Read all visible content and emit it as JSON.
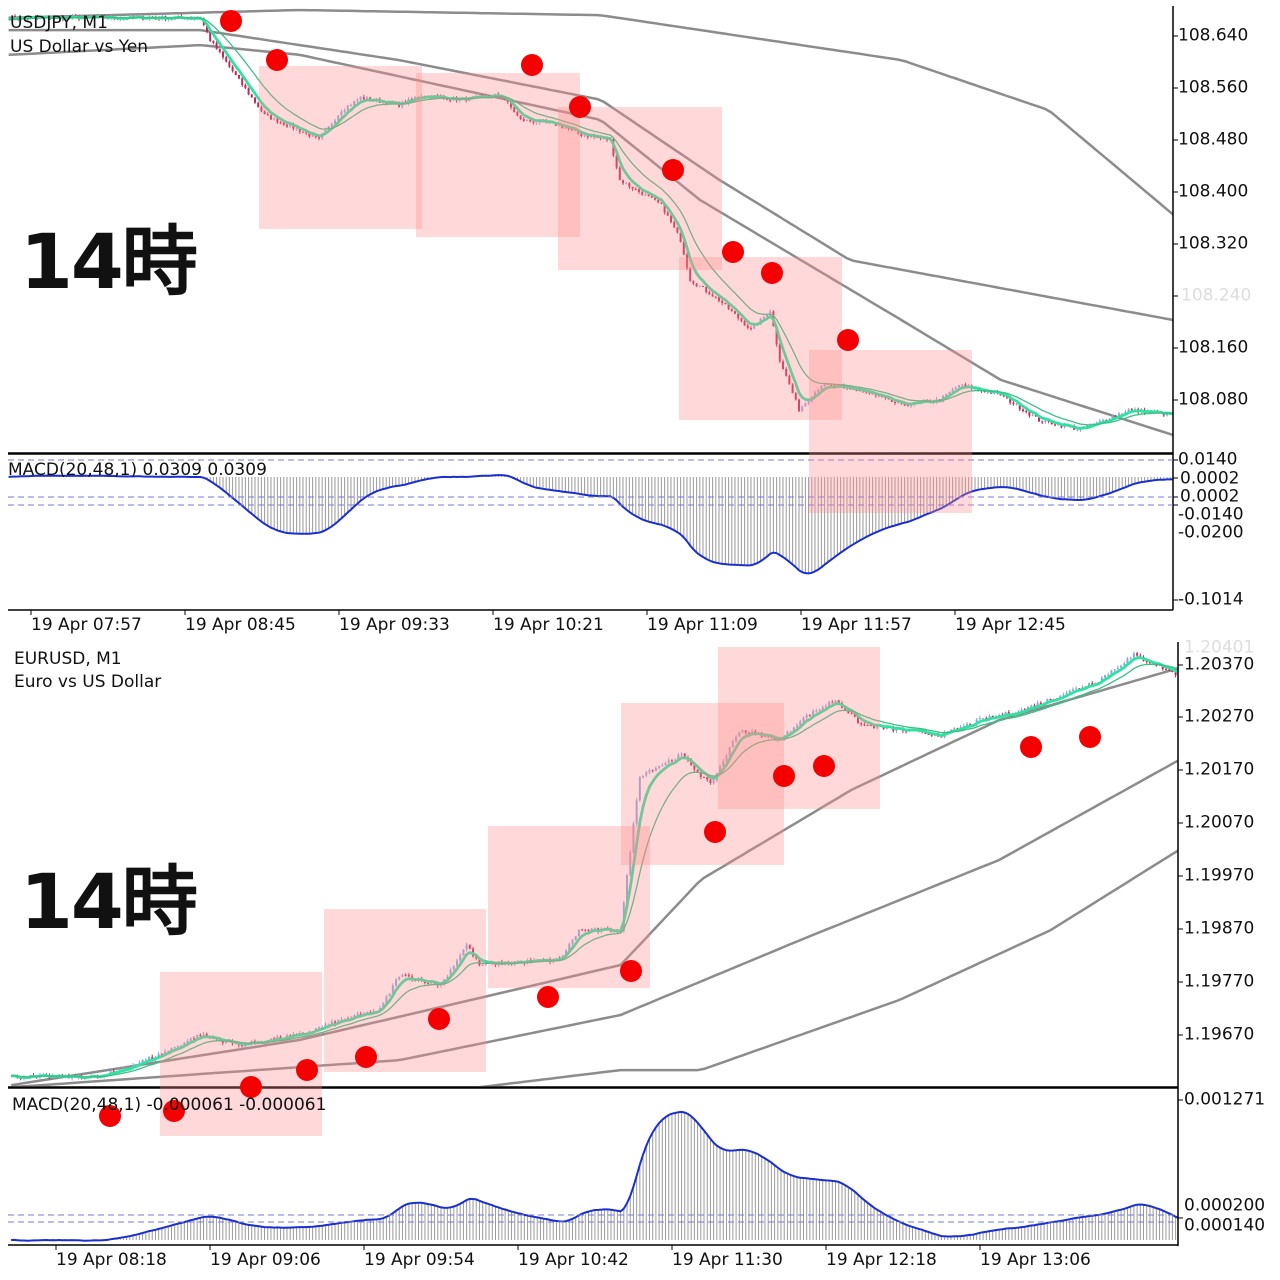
{
  "chart_data": [
    {
      "type": "candlestick",
      "symbol_label": "USDJPY, M1",
      "description": "US Dollar vs Yen",
      "annotation_text": "14時",
      "x_unit": "minutes after 19 Apr 07:57",
      "noise": 0.006,
      "close_keypoints": {
        "t": [
          -7,
          53,
          56,
          65,
          73,
          84,
          90,
          97,
          103,
          115,
          122,
          134,
          147,
          153,
          165,
          172,
          181,
          184,
          197,
          203,
          206,
          215,
          225,
          231,
          234,
          240,
          247,
          259,
          272,
          284,
          290,
          303,
          315,
          328,
          343,
          357
        ],
        "p": [
          108.668,
          108.668,
          108.634,
          108.572,
          108.518,
          108.495,
          108.48,
          108.526,
          108.545,
          108.534,
          108.549,
          108.542,
          108.549,
          108.511,
          108.503,
          108.488,
          108.48,
          108.418,
          108.38,
          108.326,
          108.265,
          108.234,
          108.188,
          108.218,
          108.142,
          108.065,
          108.103,
          108.095,
          108.072,
          108.08,
          108.103,
          108.088,
          108.049,
          108.034,
          108.065,
          108.057
        ]
      },
      "bands": [
        {
          "t": [
            -7,
            84,
            178,
            272,
            318,
            357
          ],
          "p": [
            108.668,
            108.68,
            108.672,
            108.603,
            108.526,
            108.365
          ]
        },
        {
          "t": [
            -7,
            53,
            115,
            178,
            215,
            256,
            357
          ],
          "p": [
            108.649,
            108.649,
            108.603,
            108.542,
            108.419,
            108.295,
            108.203
          ]
        },
        {
          "t": [
            -7,
            53,
            84,
            178,
            209,
            272,
            303,
            357
          ],
          "p": [
            108.611,
            108.626,
            108.611,
            108.511,
            108.388,
            108.203,
            108.111,
            108.026
          ]
        }
      ],
      "price_ticks": [
        "108.640",
        "108.560",
        "108.480",
        "108.400",
        "108.320",
        "108.240",
        "108.160",
        "108.080"
      ],
      "time_ticks": [
        "19 Apr 07:57",
        "19 Apr 08:45",
        "19 Apr 09:33",
        "19 Apr 10:21",
        "19 Apr 11:09",
        "19 Apr 11:57",
        "19 Apr 12:45"
      ],
      "macd": {
        "label": "MACD(20,48,1) 0.0309 0.0309",
        "fast": 20,
        "slow": 48,
        "signal": 1,
        "ticks": [
          "0.0140",
          "0.0002",
          "-0.0140",
          "-0.0200",
          "-0.1014"
        ],
        "overlap_tick": "0.0002"
      }
    },
    {
      "type": "candlestick",
      "symbol_label": "EURUSD, M1",
      "description": "Euro vs US Dollar",
      "annotation_text": "14時",
      "x_unit": "minutes after 19 Apr 08:18",
      "noise": 8e-05,
      "close_keypoints": {
        "t": [
          -14,
          14,
          32,
          45,
          57,
          76,
          89,
          101,
          107,
          120,
          128,
          132,
          145,
          157,
          163,
          176,
          179,
          182,
          195,
          204,
          213,
          226,
          232,
          243,
          251,
          263,
          276,
          288,
          301,
          313,
          325,
          336,
          350
        ],
        "p": [
          1.19578,
          1.19578,
          1.1962,
          1.19659,
          1.19639,
          1.19659,
          1.19687,
          1.19707,
          1.19774,
          1.19755,
          1.19832,
          1.19793,
          1.19799,
          1.19803,
          1.1986,
          1.1986,
          1.20014,
          1.20158,
          1.20197,
          1.20139,
          1.20245,
          1.20226,
          1.20264,
          1.20303,
          1.20255,
          1.20245,
          1.20235,
          1.20264,
          1.20283,
          1.20312,
          1.20341,
          1.20389,
          1.20351
        ]
      },
      "bands": [
        {
          "t": [
            -14,
            76,
            176,
            201,
            248,
            294,
            350
          ],
          "p": [
            1.19562,
            1.19649,
            1.19793,
            1.19957,
            1.2013,
            1.20264,
            1.20364
          ]
        },
        {
          "t": [
            -14,
            107,
            176,
            232,
            294,
            350
          ],
          "p": [
            1.19558,
            1.1961,
            1.19697,
            1.19841,
            1.19995,
            1.20187
          ]
        },
        {
          "t": [
            132,
            176,
            201,
            263,
            310,
            350
          ],
          "p": [
            1.19558,
            1.19591,
            1.19591,
            1.19726,
            1.1986,
            1.20014
          ]
        }
      ],
      "price_ticks": [
        "1.20401",
        "1.20370",
        "1.20270",
        "1.20170",
        "1.20070",
        "1.19970",
        "1.19870",
        "1.19770",
        "1.19670"
      ],
      "time_ticks": [
        "19 Apr 08:18",
        "19 Apr 09:06",
        "19 Apr 09:54",
        "19 Apr 10:42",
        "19 Apr 11:30",
        "19 Apr 12:18",
        "19 Apr 13:06"
      ],
      "macd": {
        "label": "MACD(20,48,1) -0.000061 -0.000061",
        "fast": 20,
        "slow": 48,
        "signal": 1,
        "ticks": [
          "0.001271",
          "0.000200",
          "0.000140"
        ]
      }
    }
  ],
  "colors": {
    "up_candle": "#8fa6dc",
    "down_candle": "#c8245a",
    "ma_fast": "#2ee3a0",
    "ma_slow": "#3cbf86",
    "band": "#8c8c8c",
    "macd_line": "#1a2fd0",
    "macd_hist": "#9a9a9a",
    "marker": "#f40000"
  }
}
